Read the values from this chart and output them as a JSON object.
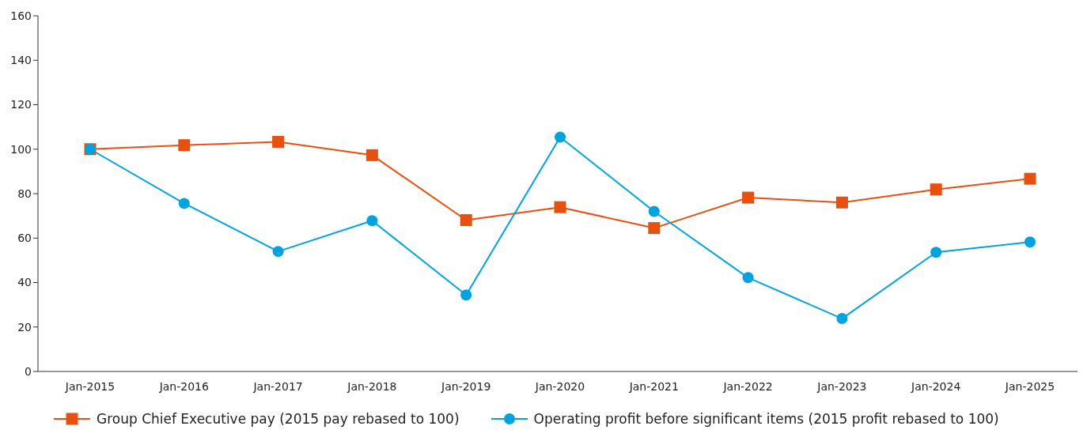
{
  "chart_data": {
    "type": "line",
    "categories": [
      "Jan-2015",
      "Jan-2016",
      "Jan-2017",
      "Jan-2018",
      "Jan-2019",
      "Jan-2020",
      "Jan-2021",
      "Jan-2022",
      "Jan-2023",
      "Jan-2024",
      "Jan-2025"
    ],
    "series": [
      {
        "name": "Group Chief Executive pay (2015 pay rebased to 100)",
        "color": "#e8500f",
        "marker": "square",
        "values": [
          100,
          101.8,
          103.3,
          97.3,
          68.1,
          73.9,
          64.5,
          78.2,
          76,
          81.9,
          86.7
        ]
      },
      {
        "name": "Operating profit before significant items (2015 profit rebased to 100)",
        "color": "#00a3e0",
        "marker": "circle",
        "values": [
          100,
          75.6,
          54,
          67.8,
          34.4,
          105.4,
          72,
          42.2,
          23.8,
          53.6,
          58.2
        ]
      }
    ],
    "ylim": [
      0,
      160
    ],
    "yticks": [
      0,
      20,
      40,
      60,
      80,
      100,
      120,
      140,
      160
    ],
    "grid": false,
    "legend": "bottom",
    "line_style": "solid"
  }
}
